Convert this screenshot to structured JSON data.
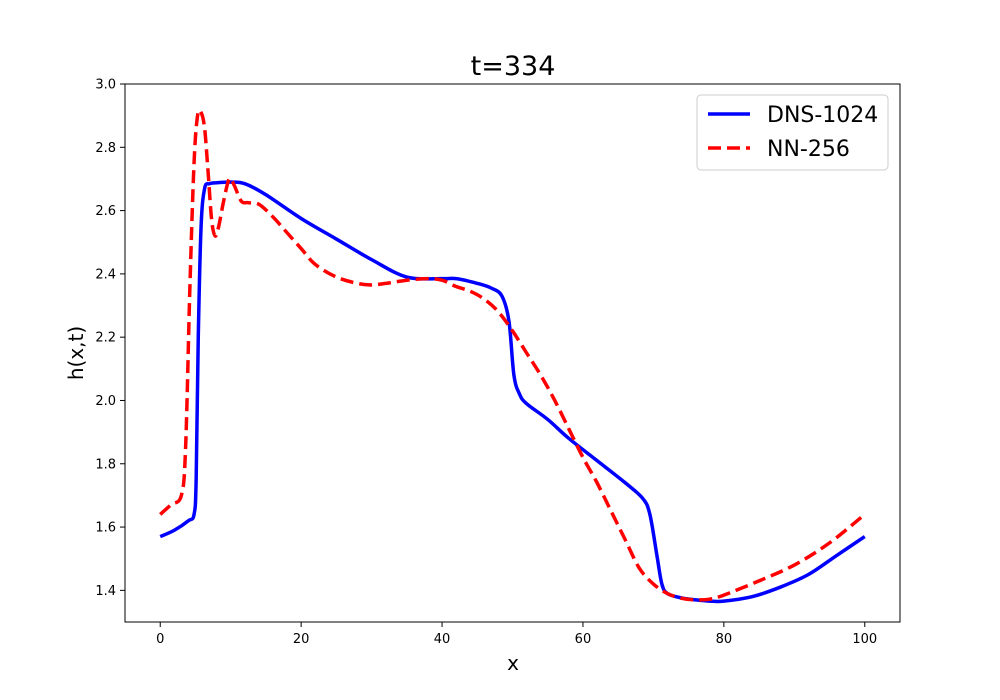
{
  "chart_data": {
    "type": "line",
    "title": "t=334",
    "xlabel": "x",
    "ylabel": "h(x,t)",
    "xlim": [
      -5,
      105
    ],
    "ylim": [
      1.3,
      3.0
    ],
    "xticks": [
      0,
      20,
      40,
      60,
      80,
      100
    ],
    "yticks": [
      1.4,
      1.6,
      1.8,
      2.0,
      2.2,
      2.4,
      2.6,
      2.8,
      3.0
    ],
    "xtick_labels": [
      "0",
      "20",
      "40",
      "60",
      "80",
      "100"
    ],
    "ytick_labels": [
      "1.4",
      "1.6",
      "1.8",
      "2.0",
      "2.2",
      "2.4",
      "2.6",
      "2.8",
      "3.0"
    ],
    "grid": false,
    "legend_position": "top-right",
    "series": [
      {
        "name": "DNS-1024",
        "color": "#0000ff",
        "style": "solid",
        "x": [
          0,
          2,
          4,
          4.8,
          5.1,
          5.4,
          5.8,
          6.3,
          7,
          8,
          10,
          12,
          15,
          20,
          25,
          30,
          35,
          40,
          42,
          45,
          47,
          48.5,
          49.5,
          50.2,
          51,
          52,
          55,
          58,
          62,
          66,
          68.5,
          69.5,
          70.5,
          71.2,
          72,
          74,
          76,
          78,
          80,
          84,
          88,
          92,
          96,
          100
        ],
        "y": [
          1.57,
          1.59,
          1.62,
          1.64,
          1.75,
          2.2,
          2.55,
          2.67,
          2.685,
          2.688,
          2.69,
          2.685,
          2.65,
          2.575,
          2.51,
          2.445,
          2.39,
          2.385,
          2.385,
          2.37,
          2.355,
          2.33,
          2.25,
          2.08,
          2.02,
          1.99,
          1.94,
          1.88,
          1.81,
          1.74,
          1.69,
          1.64,
          1.51,
          1.42,
          1.39,
          1.376,
          1.37,
          1.366,
          1.366,
          1.38,
          1.41,
          1.45,
          1.51,
          1.57
        ]
      },
      {
        "name": "NN-256",
        "color": "#ff0000",
        "style": "dashed",
        "x": [
          0,
          1.5,
          3,
          3.6,
          4.2,
          4.8,
          5.3,
          5.8,
          6.3,
          6.8,
          7.3,
          7.8,
          8.3,
          9,
          9.8,
          10.5,
          11.5,
          12.5,
          14,
          16,
          18,
          20,
          22,
          25,
          28,
          30,
          32,
          35,
          38,
          40,
          42,
          44,
          46,
          48,
          50,
          52,
          54,
          56,
          58,
          60,
          62,
          64,
          66,
          68,
          70,
          72,
          74,
          76,
          78,
          80,
          85,
          90,
          95,
          100
        ],
        "y": [
          1.64,
          1.67,
          1.7,
          1.85,
          2.35,
          2.75,
          2.9,
          2.91,
          2.86,
          2.72,
          2.57,
          2.52,
          2.55,
          2.63,
          2.7,
          2.68,
          2.63,
          2.625,
          2.62,
          2.58,
          2.53,
          2.48,
          2.43,
          2.39,
          2.37,
          2.365,
          2.37,
          2.38,
          2.385,
          2.38,
          2.36,
          2.345,
          2.32,
          2.28,
          2.22,
          2.15,
          2.08,
          2.0,
          1.91,
          1.82,
          1.74,
          1.65,
          1.56,
          1.47,
          1.42,
          1.39,
          1.375,
          1.37,
          1.372,
          1.385,
          1.43,
          1.48,
          1.55,
          1.64
        ]
      }
    ]
  }
}
